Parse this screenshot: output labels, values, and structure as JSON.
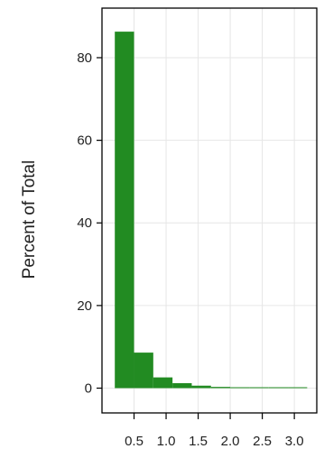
{
  "chart_data": {
    "type": "bar",
    "subtype": "histogram",
    "title": "",
    "xlabel": "",
    "ylabel": "Percent of Total",
    "xlim": [
      0.0,
      3.35
    ],
    "ylim": [
      -6,
      92
    ],
    "xticks": [
      0.5,
      1.0,
      1.5,
      2.0,
      2.5,
      3.0
    ],
    "xtick_labels": [
      "0.5",
      "1.0",
      "1.5",
      "2.0",
      "2.5",
      "3.0"
    ],
    "yticks": [
      0,
      20,
      40,
      60,
      80
    ],
    "ytick_labels": [
      "0",
      "20",
      "40",
      "60",
      "80"
    ],
    "grid": true,
    "bin_edges": [
      0.2,
      0.5,
      0.8,
      1.1,
      1.4,
      1.7,
      2.0,
      2.3,
      2.6,
      2.9,
      3.2
    ],
    "values": [
      86.3,
      8.6,
      2.6,
      1.2,
      0.6,
      0.3,
      0.2,
      0.1,
      0.1,
      0.1
    ],
    "bar_color": "#228b22",
    "grid_color": "#e6e6e6",
    "axis_color": "#000000"
  }
}
